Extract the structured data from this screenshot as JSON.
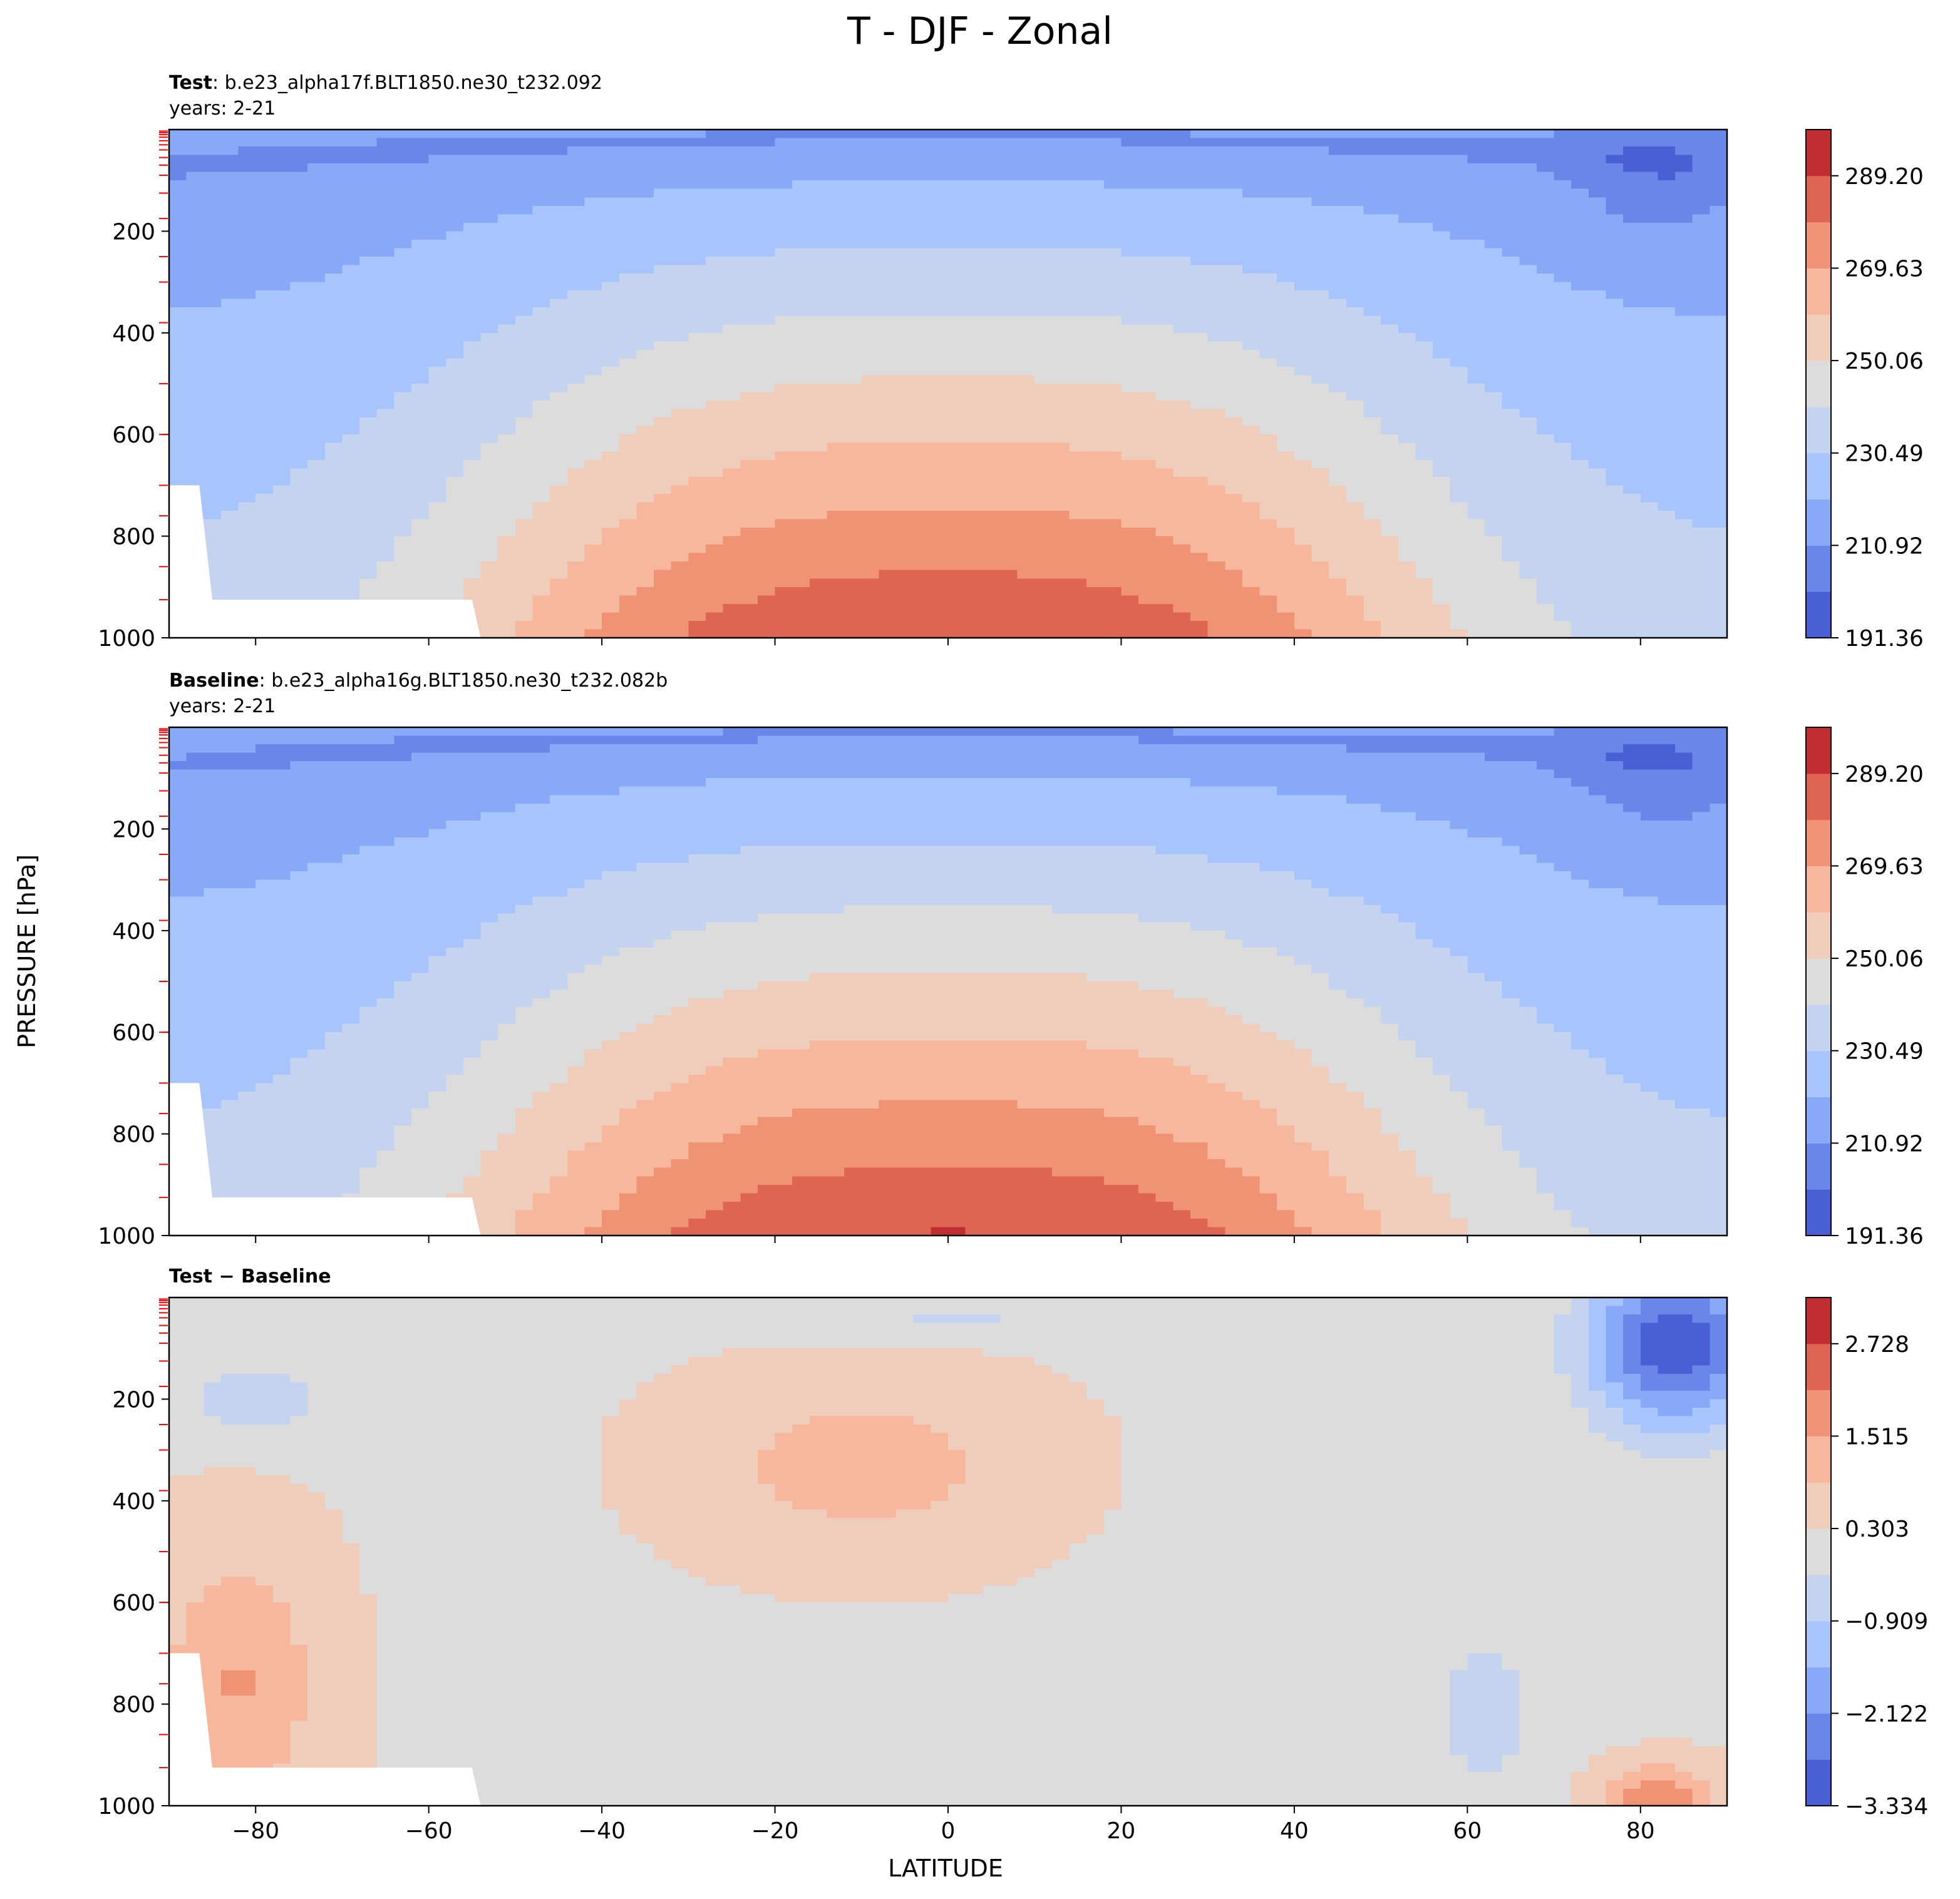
{
  "title": "T - DJF - Zonal",
  "ylabel": "PRESSURE [hPa]",
  "xlabel": "LATITUDE",
  "colors": {
    "warm": [
      "#c22d32",
      "#df6553",
      "#f09375",
      "#f6b79c",
      "#f0cdbb"
    ],
    "neutral": "#dcdcdc",
    "cool": [
      "#c4d4f0",
      "#a8c4fc",
      "#88a9f7",
      "#6887e9",
      "#4a5fd3"
    ],
    "pressure_tick": "#ff0000"
  },
  "chart_data": [
    {
      "type": "contour",
      "panel": "test",
      "label_bold": "Test",
      "label_rest": ": b.e23_alpha17f.BLT1850.ne30_t232.092",
      "years": "years: 2-21",
      "x_ticks": [
        "−80",
        "−60",
        "−40",
        "−20",
        "0",
        "20",
        "40",
        "60",
        "80"
      ],
      "x_tick_values": [
        -80,
        -60,
        -40,
        -20,
        0,
        20,
        40,
        60,
        80
      ],
      "xlim": [
        -90,
        90
      ],
      "y_ticks": [
        "200",
        "400",
        "600",
        "800",
        "1000"
      ],
      "y_tick_values": [
        200,
        400,
        600,
        800,
        1000
      ],
      "ylim": [
        1000,
        0
      ],
      "colorbar_ticks": [
        "289.20",
        "269.63",
        "250.06",
        "230.49",
        "210.92",
        "191.36"
      ],
      "colorbar_range": [
        191.36,
        299.0
      ],
      "colorbar_levels": 11
    },
    {
      "type": "contour",
      "panel": "baseline",
      "label_bold": "Baseline",
      "label_rest": ": b.e23_alpha16g.BLT1850.ne30_t232.082b",
      "years": "years: 2-21",
      "x_ticks": [
        "−80",
        "−60",
        "−40",
        "−20",
        "0",
        "20",
        "40",
        "60",
        "80"
      ],
      "x_tick_values": [
        -80,
        -60,
        -40,
        -20,
        0,
        20,
        40,
        60,
        80
      ],
      "xlim": [
        -90,
        90
      ],
      "y_ticks": [
        "200",
        "400",
        "600",
        "800",
        "1000"
      ],
      "y_tick_values": [
        200,
        400,
        600,
        800,
        1000
      ],
      "ylim": [
        1000,
        0
      ],
      "colorbar_ticks": [
        "289.20",
        "269.63",
        "250.06",
        "230.49",
        "210.92",
        "191.36"
      ],
      "colorbar_range": [
        191.36,
        299.0
      ],
      "colorbar_levels": 11
    },
    {
      "type": "contour",
      "panel": "difference",
      "label_bold": "Test − Baseline",
      "label_rest": "",
      "years": "",
      "x_ticks": [
        "−80",
        "−60",
        "−40",
        "−20",
        "0",
        "20",
        "40",
        "60",
        "80"
      ],
      "x_tick_values": [
        -80,
        -60,
        -40,
        -20,
        0,
        20,
        40,
        60,
        80
      ],
      "xlim": [
        -90,
        90
      ],
      "y_ticks": [
        "200",
        "400",
        "600",
        "800",
        "1000"
      ],
      "y_tick_values": [
        200,
        400,
        600,
        800,
        1000
      ],
      "ylim": [
        1000,
        0
      ],
      "colorbar_ticks": [
        "2.728",
        "1.515",
        "0.303",
        "−0.909",
        "−2.122",
        "−3.334"
      ],
      "colorbar_range": [
        -3.334,
        3.334
      ],
      "colorbar_levels": 11
    }
  ]
}
